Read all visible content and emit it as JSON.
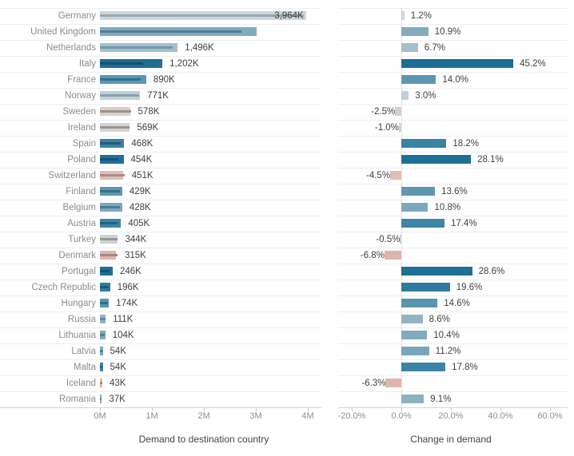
{
  "chart_data": {
    "type": "bar",
    "orientation": "horizontal",
    "grid": "row-separators-only",
    "panels": [
      {
        "title": "Demand to destination country",
        "axis_ticks": [
          "0M",
          "1M",
          "2M",
          "3M",
          "4M"
        ],
        "axis_range_k": [
          0,
          4500
        ],
        "unit": "thousands"
      },
      {
        "title": "Change in demand",
        "axis_ticks": [
          "-20.0%",
          "0.0%",
          "20.0%",
          "40.0%",
          "60.0%"
        ],
        "axis_range_pct": [
          -25.5,
          69.5
        ],
        "unit": "percent"
      }
    ],
    "rows": [
      {
        "country": "Germany",
        "demand_k": 3964,
        "demand_label": "3,964K",
        "label_inside": true,
        "change_pct": 1.2,
        "change_label": "1.2%",
        "bar_color": "#cdd7db",
        "ref_color": "#93a9b2"
      },
      {
        "country": "United Kingdom",
        "demand_k": 3012,
        "demand_label": "",
        "label_inside": false,
        "change_pct": 10.9,
        "change_label": "10.9%",
        "bar_color": "#82abbe",
        "ref_color": "#4c7f98"
      },
      {
        "country": "Netherlands",
        "demand_k": 1496,
        "demand_label": "1,496K",
        "label_inside": false,
        "change_pct": 6.7,
        "change_label": "6.7%",
        "bar_color": "#a4c0cc",
        "ref_color": "#6f97a8"
      },
      {
        "country": "Italy",
        "demand_k": 1202,
        "demand_label": "1,202K",
        "label_inside": false,
        "change_pct": 45.2,
        "change_label": "45.2%",
        "bar_color": "#1d6d95",
        "ref_color": "#14506f"
      },
      {
        "country": "France",
        "demand_k": 890,
        "demand_label": "890K",
        "label_inside": false,
        "change_pct": 14.0,
        "change_label": "14.0%",
        "bar_color": "#5d96b0",
        "ref_color": "#32718e"
      },
      {
        "country": "Norway",
        "demand_k": 771,
        "demand_label": "771K",
        "label_inside": false,
        "change_pct": 3.0,
        "change_label": "3.0%",
        "bar_color": "#bfd0d7",
        "ref_color": "#87a4b0"
      },
      {
        "country": "Sweden",
        "demand_k": 578,
        "demand_label": "578K",
        "label_inside": false,
        "change_pct": -2.5,
        "change_label": "-2.5%",
        "bar_color": "#ddccc6",
        "ref_color": "#969390"
      },
      {
        "country": "Ireland",
        "demand_k": 569,
        "demand_label": "569K",
        "label_inside": false,
        "change_pct": -1.0,
        "change_label": "-1.0%",
        "bar_color": "#d6d2d1",
        "ref_color": "#949596"
      },
      {
        "country": "Spain",
        "demand_k": 468,
        "demand_label": "468K",
        "label_inside": false,
        "change_pct": 18.2,
        "change_label": "18.2%",
        "bar_color": "#3a82a2",
        "ref_color": "#235e7c"
      },
      {
        "country": "Poland",
        "demand_k": 454,
        "demand_label": "454K",
        "label_inside": false,
        "change_pct": 28.1,
        "change_label": "28.1%",
        "bar_color": "#1f7097",
        "ref_color": "#155272"
      },
      {
        "country": "Switzerland",
        "demand_k": 451,
        "demand_label": "451K",
        "label_inside": false,
        "change_pct": -4.5,
        "change_label": "-4.5%",
        "bar_color": "#dfbeb4",
        "ref_color": "#a08f89"
      },
      {
        "country": "Finland",
        "demand_k": 429,
        "demand_label": "429K",
        "label_inside": false,
        "change_pct": 13.6,
        "change_label": "13.6%",
        "bar_color": "#6097b0",
        "ref_color": "#36708c"
      },
      {
        "country": "Belgium",
        "demand_k": 428,
        "demand_label": "428K",
        "label_inside": false,
        "change_pct": 10.8,
        "change_label": "10.8%",
        "bar_color": "#7da8bb",
        "ref_color": "#4b7d95"
      },
      {
        "country": "Austria",
        "demand_k": 405,
        "demand_label": "405K",
        "label_inside": false,
        "change_pct": 17.4,
        "change_label": "17.4%",
        "bar_color": "#3f85a5",
        "ref_color": "#266180"
      },
      {
        "country": "Turkey",
        "demand_k": 344,
        "demand_label": "344K",
        "label_inside": false,
        "change_pct": -0.5,
        "change_label": "-0.5%",
        "bar_color": "#d2d1d1",
        "ref_color": "#969798"
      },
      {
        "country": "Denmark",
        "demand_k": 315,
        "demand_label": "315K",
        "label_inside": false,
        "change_pct": -6.8,
        "change_label": "-6.8%",
        "bar_color": "#dfb5ab",
        "ref_color": "#a28a82"
      },
      {
        "country": "Portugal",
        "demand_k": 246,
        "demand_label": "246K",
        "label_inside": false,
        "change_pct": 28.6,
        "change_label": "28.6%",
        "bar_color": "#1f7097",
        "ref_color": "#155272"
      },
      {
        "country": "Czech Republic",
        "demand_k": 196,
        "demand_label": "196K",
        "label_inside": false,
        "change_pct": 19.6,
        "change_label": "19.6%",
        "bar_color": "#2f7c9e",
        "ref_color": "#1c5a78"
      },
      {
        "country": "Hungary",
        "demand_k": 174,
        "demand_label": "174K",
        "label_inside": false,
        "change_pct": 14.6,
        "change_label": "14.6%",
        "bar_color": "#5794ae",
        "ref_color": "#2f6e8b"
      },
      {
        "country": "Russia",
        "demand_k": 111,
        "demand_label": "111K",
        "label_inside": false,
        "change_pct": 8.6,
        "change_label": "8.6%",
        "bar_color": "#92b4c3",
        "ref_color": "#5f8ba0"
      },
      {
        "country": "Lithuania",
        "demand_k": 104,
        "demand_label": "104K",
        "label_inside": false,
        "change_pct": 10.4,
        "change_label": "10.4%",
        "bar_color": "#80aabd",
        "ref_color": "#4e7f97"
      },
      {
        "country": "Latvia",
        "demand_k": 54,
        "demand_label": "54K",
        "label_inside": false,
        "change_pct": 11.2,
        "change_label": "11.2%",
        "bar_color": "#79a6ba",
        "ref_color": "#477b94"
      },
      {
        "country": "Malta",
        "demand_k": 54,
        "demand_label": "54K",
        "label_inside": false,
        "change_pct": 17.8,
        "change_label": "17.8%",
        "bar_color": "#3d84a4",
        "ref_color": "#246080"
      },
      {
        "country": "Iceland",
        "demand_k": 43,
        "demand_label": "43K",
        "label_inside": false,
        "change_pct": -6.3,
        "change_label": "-6.3%",
        "bar_color": "#dfb6ac",
        "ref_color": "#a18a83"
      },
      {
        "country": "Romania",
        "demand_k": 37,
        "demand_label": "37K",
        "label_inside": false,
        "change_pct": 9.1,
        "change_label": "9.1%",
        "bar_color": "#8db1c1",
        "ref_color": "#5a889e"
      }
    ],
    "notes": {
      "inner_line_meaning": "previous-period demand (demand / (1 + change))",
      "positive_color_max": "#1d6d95",
      "negative_color": "#dfb5ab",
      "neutral_color": "#cdd7db"
    }
  }
}
